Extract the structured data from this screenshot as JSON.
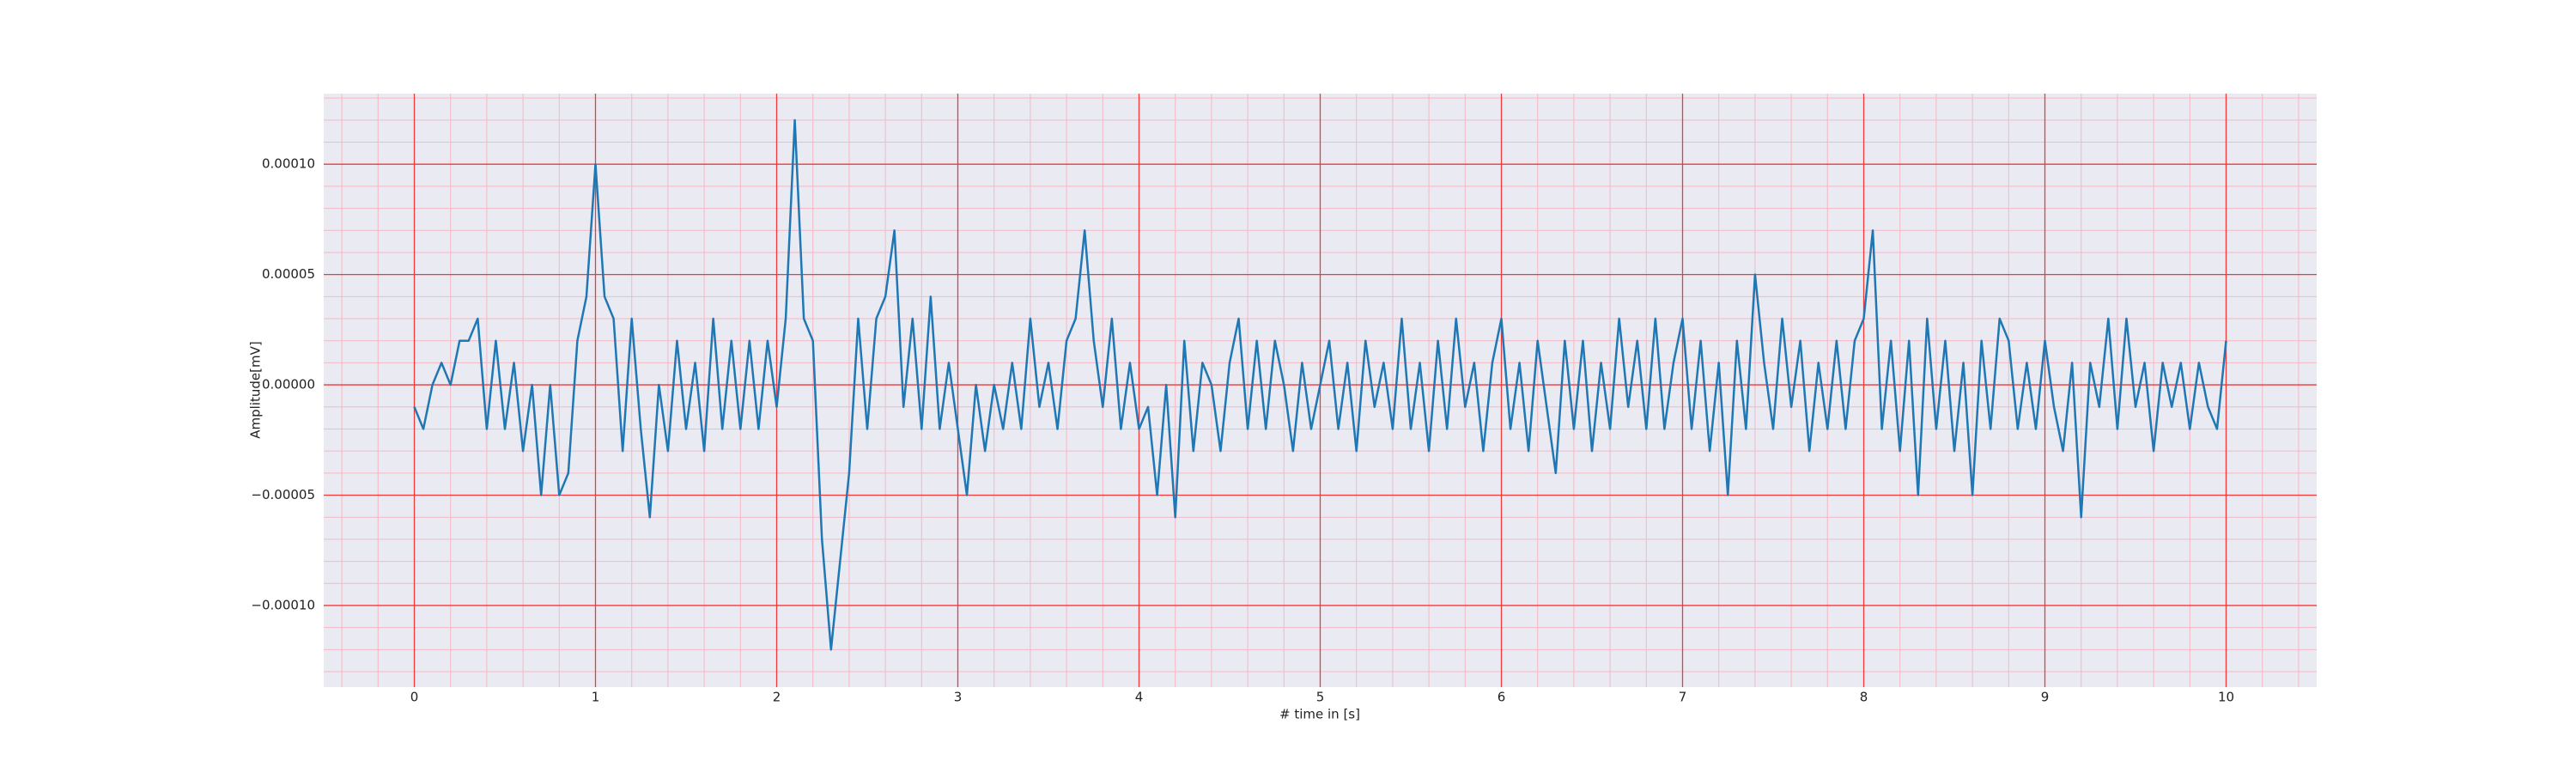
{
  "chart_data": {
    "type": "line",
    "xlabel": "# time in [s]",
    "ylabel": "Amplitude[mV]",
    "xlim": [
      -0.5,
      10.5
    ],
    "ylim": [
      -0.000137,
      0.000132
    ],
    "xticks": [
      0,
      1,
      2,
      3,
      4,
      5,
      6,
      7,
      8,
      9,
      10
    ],
    "yticks": [
      {
        "value": -0.0001,
        "label": "−0.00010"
      },
      {
        "value": -5e-05,
        "label": "−0.00005"
      },
      {
        "value": 0,
        "label": "0.00000"
      },
      {
        "value": 5e-05,
        "label": "0.00005"
      },
      {
        "value": 0.0001,
        "label": "0.00010"
      }
    ],
    "grid": true,
    "grid_color": "#f03a3a",
    "minor_grid_color": "#f5b8c4",
    "background": "#eaeaf2",
    "xminorticks": [
      -0.4,
      -0.2,
      0.2,
      0.4,
      0.6,
      0.8,
      1.2,
      1.4,
      1.6,
      1.8,
      2.2,
      2.4,
      2.6,
      2.8,
      3.2,
      3.4,
      3.6,
      3.8,
      4.2,
      4.4,
      4.6,
      4.8,
      5.2,
      5.4,
      5.6,
      5.8,
      6.2,
      6.4,
      6.6,
      6.8,
      7.2,
      7.4,
      7.6,
      7.8,
      8.2,
      8.4,
      8.6,
      8.8,
      9.2,
      9.4,
      9.6,
      9.8,
      10.2,
      10.4
    ],
    "yminorticks": [
      -0.00013,
      -0.00012,
      -0.00011,
      -9e-05,
      -8e-05,
      -7e-05,
      -6e-05,
      -4e-05,
      -3e-05,
      -2e-05,
      -1e-05,
      1e-05,
      2e-05,
      3e-05,
      4e-05,
      6e-05,
      7e-05,
      8e-05,
      9e-05,
      0.00011,
      0.00012,
      0.00013
    ],
    "series": [
      {
        "color": "#1f77b4",
        "x": [
          0,
          0.05,
          0.1,
          0.15,
          0.2,
          0.25,
          0.3,
          0.35,
          0.4,
          0.45,
          0.5,
          0.55,
          0.6,
          0.65,
          0.7,
          0.75,
          0.8,
          0.85,
          0.9,
          0.95,
          1,
          1.05,
          1.1,
          1.15,
          1.2,
          1.25,
          1.3,
          1.35,
          1.4,
          1.45,
          1.5,
          1.55,
          1.6,
          1.65,
          1.7,
          1.75,
          1.8,
          1.85,
          1.9,
          1.95,
          2,
          2.05,
          2.1,
          2.15,
          2.2,
          2.25,
          2.3,
          2.35,
          2.4,
          2.45,
          2.5,
          2.55,
          2.6,
          2.65,
          2.7,
          2.75,
          2.8,
          2.85,
          2.9,
          2.95,
          3,
          3.05,
          3.1,
          3.15,
          3.2,
          3.25,
          3.3,
          3.35,
          3.4,
          3.45,
          3.5,
          3.55,
          3.6,
          3.65,
          3.7,
          3.75,
          3.8,
          3.85,
          3.9,
          3.95,
          4,
          4.05,
          4.1,
          4.15,
          4.2,
          4.25,
          4.3,
          4.35,
          4.4,
          4.45,
          4.5,
          4.55,
          4.6,
          4.65,
          4.7,
          4.75,
          4.8,
          4.85,
          4.9,
          4.95,
          5,
          5.05,
          5.1,
          5.15,
          5.2,
          5.25,
          5.3,
          5.35,
          5.4,
          5.45,
          5.5,
          5.55,
          5.6,
          5.65,
          5.7,
          5.75,
          5.8,
          5.85,
          5.9,
          5.95,
          6,
          6.05,
          6.1,
          6.15,
          6.2,
          6.25,
          6.3,
          6.35,
          6.4,
          6.45,
          6.5,
          6.55,
          6.6,
          6.65,
          6.7,
          6.75,
          6.8,
          6.85,
          6.9,
          6.95,
          7,
          7.05,
          7.1,
          7.15,
          7.2,
          7.25,
          7.3,
          7.35,
          7.4,
          7.45,
          7.5,
          7.55,
          7.6,
          7.65,
          7.7,
          7.75,
          7.8,
          7.85,
          7.9,
          7.95,
          8,
          8.05,
          8.1,
          8.15,
          8.2,
          8.25,
          8.3,
          8.35,
          8.4,
          8.45,
          8.5,
          8.55,
          8.6,
          8.65,
          8.7,
          8.75,
          8.8,
          8.85,
          8.9,
          8.95,
          9,
          9.05,
          9.1,
          9.15,
          9.2,
          9.25,
          9.3,
          9.35,
          9.4,
          9.45,
          9.5,
          9.55,
          9.6,
          9.65,
          9.7,
          9.75,
          9.8,
          9.85,
          9.9,
          9.95,
          10
        ],
        "values": [
          -1e-05,
          -2e-05,
          0,
          1e-05,
          0,
          2e-05,
          2e-05,
          3e-05,
          -2e-05,
          2e-05,
          -2e-05,
          1e-05,
          -3e-05,
          0,
          -5e-05,
          0,
          -5e-05,
          -4e-05,
          2e-05,
          4e-05,
          0.0001,
          4e-05,
          3e-05,
          -3e-05,
          3e-05,
          -2e-05,
          -6e-05,
          0,
          -3e-05,
          2e-05,
          -2e-05,
          1e-05,
          -3e-05,
          3e-05,
          -2e-05,
          2e-05,
          -2e-05,
          2e-05,
          -2e-05,
          2e-05,
          -1e-05,
          3e-05,
          0.00012,
          3e-05,
          2e-05,
          -7e-05,
          -0.00012,
          -8e-05,
          -4e-05,
          3e-05,
          -2e-05,
          3e-05,
          4e-05,
          7e-05,
          -1e-05,
          3e-05,
          -2e-05,
          4e-05,
          -2e-05,
          1e-05,
          -2e-05,
          -5e-05,
          0,
          -3e-05,
          0,
          -2e-05,
          1e-05,
          -2e-05,
          3e-05,
          -1e-05,
          1e-05,
          -2e-05,
          2e-05,
          3e-05,
          7e-05,
          2e-05,
          -1e-05,
          3e-05,
          -2e-05,
          1e-05,
          -2e-05,
          -1e-05,
          -5e-05,
          0,
          -6e-05,
          2e-05,
          -3e-05,
          1e-05,
          0,
          -3e-05,
          1e-05,
          3e-05,
          -2e-05,
          2e-05,
          -2e-05,
          2e-05,
          0,
          -3e-05,
          1e-05,
          -2e-05,
          0,
          2e-05,
          -2e-05,
          1e-05,
          -3e-05,
          2e-05,
          -1e-05,
          1e-05,
          -2e-05,
          3e-05,
          -2e-05,
          1e-05,
          -3e-05,
          2e-05,
          -2e-05,
          3e-05,
          -1e-05,
          1e-05,
          -3e-05,
          1e-05,
          3e-05,
          -2e-05,
          1e-05,
          -3e-05,
          2e-05,
          -1e-05,
          -4e-05,
          2e-05,
          -2e-05,
          2e-05,
          -3e-05,
          1e-05,
          -2e-05,
          3e-05,
          -1e-05,
          2e-05,
          -2e-05,
          3e-05,
          -2e-05,
          1e-05,
          3e-05,
          -2e-05,
          2e-05,
          -3e-05,
          1e-05,
          -5e-05,
          2e-05,
          -2e-05,
          5e-05,
          1e-05,
          -2e-05,
          3e-05,
          -1e-05,
          2e-05,
          -3e-05,
          1e-05,
          -2e-05,
          2e-05,
          -2e-05,
          2e-05,
          3e-05,
          7e-05,
          -2e-05,
          2e-05,
          -3e-05,
          2e-05,
          -5e-05,
          3e-05,
          -2e-05,
          2e-05,
          -3e-05,
          1e-05,
          -5e-05,
          2e-05,
          -2e-05,
          3e-05,
          2e-05,
          -2e-05,
          1e-05,
          -2e-05,
          2e-05,
          -1e-05,
          -3e-05,
          1e-05,
          -6e-05,
          1e-05,
          -1e-05,
          3e-05,
          -2e-05,
          3e-05,
          -1e-05,
          1e-05,
          -3e-05,
          1e-05,
          -1e-05,
          1e-05,
          -2e-05,
          1e-05,
          -1e-05,
          -2e-05,
          2e-05
        ]
      }
    ]
  }
}
